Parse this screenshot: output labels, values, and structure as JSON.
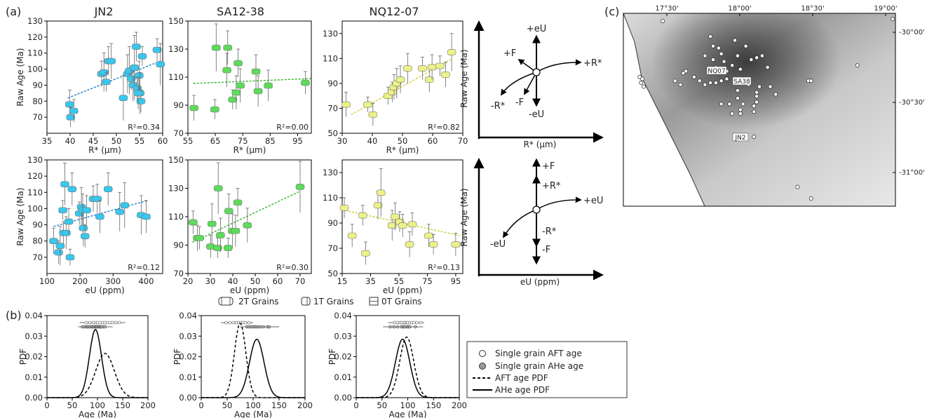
{
  "panel_labels": {
    "a": "(a)",
    "b": "(b)",
    "c": "(c)"
  },
  "samples": [
    "JN2",
    "SA12-38",
    "NQ12-07"
  ],
  "colors": {
    "JN2": "#38c7ee",
    "SA12-38": "#5ddb5a",
    "NQ12-07": "#ecf287"
  },
  "trend_colors": {
    "JN2": "#1a7fd0",
    "SA12-38": "#2fb82c",
    "NQ12-07": "#c9d32a"
  },
  "chart_data": [
    {
      "type": "scatter",
      "sample": "JN2",
      "xlabel": "R* (µm)",
      "ylabel": "Raw Age (Ma)",
      "xlim": [
        35,
        60
      ],
      "ylim": [
        60,
        130
      ],
      "xticks": [
        35,
        40,
        45,
        50,
        55,
        60
      ],
      "yticks": [
        70,
        80,
        90,
        100,
        110,
        120,
        130
      ],
      "r2": "R²=0.34",
      "trend": [
        [
          39.5,
          82
        ],
        [
          59.5,
          105
        ]
      ],
      "points": [
        [
          39.9,
          78,
          9
        ],
        [
          40.1,
          70,
          6
        ],
        [
          40.8,
          74,
          7
        ],
        [
          46.8,
          97,
          8
        ],
        [
          47.3,
          98,
          12
        ],
        [
          47.8,
          92,
          6
        ],
        [
          48.3,
          105,
          9
        ],
        [
          48.9,
          105,
          11
        ],
        [
          52.4,
          97,
          12
        ],
        [
          51.5,
          82,
          14
        ],
        [
          52.8,
          99,
          15
        ],
        [
          53.2,
          94,
          7
        ],
        [
          53.6,
          90,
          10
        ],
        [
          53.9,
          101,
          20
        ],
        [
          54.3,
          114,
          9
        ],
        [
          54.5,
          88,
          8
        ],
        [
          54.9,
          96,
          9
        ],
        [
          55.1,
          85,
          13
        ],
        [
          55.3,
          80,
          7
        ],
        [
          55.6,
          108,
          6
        ],
        [
          58.8,
          112,
          7
        ],
        [
          59.5,
          103,
          13
        ],
        [
          54.7,
          85,
          10
        ]
      ]
    },
    {
      "type": "scatter",
      "sample": "SA12-38",
      "xlabel": "R* (µm)",
      "ylabel": "",
      "xlim": [
        55,
        100
      ],
      "ylim": [
        70,
        150
      ],
      "xticks": [
        55,
        65,
        75,
        85,
        95
      ],
      "yticks": [
        70,
        90,
        110,
        130,
        150
      ],
      "r2": "R²=0.00",
      "trend": [
        [
          57,
          105.5
        ],
        [
          100,
          109
        ]
      ],
      "points": [
        [
          57.2,
          88,
          9
        ],
        [
          64.8,
          87,
          7
        ],
        [
          65.3,
          131,
          17
        ],
        [
          69.5,
          131,
          12
        ],
        [
          69.2,
          115,
          12
        ],
        [
          71.3,
          94,
          7
        ],
        [
          72.6,
          99,
          12
        ],
        [
          73.3,
          120,
          10
        ],
        [
          74.1,
          104,
          12
        ],
        [
          79.8,
          114,
          12
        ],
        [
          80.6,
          100,
          11
        ],
        [
          84.3,
          104,
          11
        ],
        [
          97.8,
          106,
          8
        ]
      ]
    },
    {
      "type": "scatter",
      "sample": "NQ12-07",
      "xlabel": "R* (µm)",
      "ylabel": "",
      "xlim": [
        30,
        70
      ],
      "ylim": [
        50,
        140
      ],
      "xticks": [
        30,
        40,
        50,
        60,
        70
      ],
      "yticks": [
        50,
        70,
        90,
        110,
        130
      ],
      "r2": "R²=0.82",
      "trend": [
        [
          33,
          65
        ],
        [
          66,
          109
        ]
      ],
      "points": [
        [
          31.3,
          73,
          10
        ],
        [
          38.5,
          73,
          6
        ],
        [
          40.2,
          65,
          9
        ],
        [
          45.2,
          80,
          7
        ],
        [
          46.6,
          83,
          8
        ],
        [
          47.2,
          87,
          10
        ],
        [
          48.1,
          90,
          12
        ],
        [
          49.3,
          93,
          11
        ],
        [
          51.7,
          102,
          12
        ],
        [
          56.6,
          102,
          9
        ],
        [
          58.9,
          93,
          10
        ],
        [
          59.8,
          103,
          10
        ],
        [
          62.4,
          104,
          8
        ],
        [
          64.3,
          97,
          10
        ],
        [
          66.3,
          115,
          15
        ]
      ]
    },
    {
      "type": "scatter",
      "sample": "JN2",
      "xlabel": "eU (ppm)",
      "ylabel": "Raw Age (Ma)",
      "xlim": [
        100,
        450
      ],
      "ylim": [
        60,
        130
      ],
      "xticks": [
        100,
        200,
        300,
        400
      ],
      "yticks": [
        70,
        80,
        90,
        100,
        110,
        120,
        130
      ],
      "r2": "R²=0.12",
      "trend": [
        [
          120,
          89
        ],
        [
          405,
          105
        ]
      ],
      "points": [
        [
          120,
          80,
          8
        ],
        [
          135,
          73,
          7
        ],
        [
          140,
          77,
          12
        ],
        [
          148,
          99,
          6
        ],
        [
          150,
          85,
          7
        ],
        [
          154,
          115,
          13
        ],
        [
          158,
          85,
          10
        ],
        [
          166,
          92,
          8
        ],
        [
          170,
          70,
          5
        ],
        [
          176,
          112,
          10
        ],
        [
          198,
          97,
          7
        ],
        [
          204,
          101,
          12
        ],
        [
          208,
          99,
          10
        ],
        [
          210,
          88,
          11
        ],
        [
          215,
          83,
          7
        ],
        [
          220,
          99,
          9
        ],
        [
          240,
          106,
          8
        ],
        [
          252,
          106,
          9
        ],
        [
          260,
          95,
          10
        ],
        [
          285,
          112,
          10
        ],
        [
          320,
          98,
          12
        ],
        [
          335,
          102,
          14
        ],
        [
          385,
          96,
          12
        ],
        [
          400,
          95,
          10
        ]
      ]
    },
    {
      "type": "scatter",
      "sample": "SA12-38",
      "xlabel": "eU (ppm)",
      "ylabel": "",
      "xlim": [
        20,
        75
      ],
      "ylim": [
        70,
        150
      ],
      "xticks": [
        20,
        30,
        40,
        50,
        60,
        70
      ],
      "yticks": [
        70,
        90,
        110,
        130,
        150
      ],
      "r2": "R²=0.30",
      "trend": [
        [
          22,
          92
        ],
        [
          70,
          128
        ]
      ],
      "points": [
        [
          22.3,
          106,
          8
        ],
        [
          24.2,
          95,
          9
        ],
        [
          25.2,
          95,
          8
        ],
        [
          30.1,
          89,
          8
        ],
        [
          30.7,
          105,
          14
        ],
        [
          33.5,
          130,
          18
        ],
        [
          33.3,
          88,
          7
        ],
        [
          34.5,
          97,
          12
        ],
        [
          37.9,
          88,
          7
        ],
        [
          38.2,
          114,
          12
        ],
        [
          39.8,
          100,
          12
        ],
        [
          41.2,
          100,
          11
        ],
        [
          42.2,
          120,
          10
        ],
        [
          46.5,
          104,
          12
        ],
        [
          70,
          131,
          18
        ]
      ]
    },
    {
      "type": "scatter",
      "sample": "NQ12-07",
      "xlabel": "eU (ppm)",
      "ylabel": "",
      "xlim": [
        15,
        100
      ],
      "ylim": [
        50,
        140
      ],
      "xticks": [
        15,
        35,
        55,
        75,
        95
      ],
      "yticks": [
        50,
        70,
        90,
        110,
        130
      ],
      "r2": "R²=0.13",
      "trend": [
        [
          17,
          100
        ],
        [
          98,
          80
        ]
      ],
      "points": [
        [
          16.5,
          102,
          8
        ],
        [
          22,
          80,
          9
        ],
        [
          29.5,
          96,
          8
        ],
        [
          31.5,
          66,
          9
        ],
        [
          40.2,
          104,
          11
        ],
        [
          42.3,
          114,
          19
        ],
        [
          50.2,
          88,
          12
        ],
        [
          52.3,
          95,
          11
        ],
        [
          55.5,
          91,
          8
        ],
        [
          57.6,
          88,
          9
        ],
        [
          62.5,
          73,
          10
        ],
        [
          64.4,
          89,
          9
        ],
        [
          76,
          80,
          9
        ],
        [
          79.3,
          73,
          8
        ],
        [
          95,
          73,
          9
        ]
      ]
    },
    {
      "type": "line",
      "sample": "JN2",
      "xlabel": "Age (Ma)",
      "ylabel": "PDF",
      "xlim": [
        0,
        200
      ],
      "ylim": [
        0,
        0.04
      ],
      "xticks": [
        0,
        50,
        100,
        150,
        200
      ],
      "yticks": [
        0.0,
        0.01,
        0.02,
        0.03,
        0.04
      ],
      "series": [
        {
          "name": "AFT age PDF",
          "dash": true,
          "mu": 115,
          "sigma": 18.5
        },
        {
          "name": "AHe age PDF",
          "dash": false,
          "mu": 96,
          "sigma": 12
        }
      ],
      "aft_grains": [
        78,
        85,
        92,
        97,
        100,
        105,
        110,
        115,
        120,
        125,
        130,
        136,
        143
      ],
      "ahe_grains": [
        70,
        74,
        78,
        80,
        82,
        85,
        88,
        90,
        92,
        94,
        96,
        98,
        99,
        101,
        103,
        105,
        106,
        108,
        112,
        115
      ],
      "aft_range": [
        65,
        155
      ],
      "ahe_range": [
        62,
        130
      ]
    },
    {
      "type": "line",
      "sample": "SA12-38",
      "xlabel": "Age (Ma)",
      "ylabel": "PDF",
      "xlim": [
        0,
        200
      ],
      "ylim": [
        0,
        0.04
      ],
      "xticks": [
        0,
        50,
        100,
        150,
        200
      ],
      "yticks": [
        0.0,
        0.01,
        0.02,
        0.03,
        0.04
      ],
      "series": [
        {
          "name": "AFT age PDF",
          "dash": true,
          "mu": 75,
          "sigma": 11
        },
        {
          "name": "AHe age PDF",
          "dash": false,
          "mu": 107,
          "sigma": 14
        }
      ],
      "aft_grains": [
        48,
        55,
        62,
        68,
        72,
        76,
        80,
        85,
        92
      ],
      "ahe_grains": [
        88,
        92,
        96,
        100,
        104,
        106,
        110,
        114,
        120,
        128,
        131
      ],
      "aft_range": [
        38,
        100
      ],
      "ahe_range": [
        75,
        150
      ]
    },
    {
      "type": "line",
      "sample": "NQ12-07",
      "xlabel": "Age (Ma)",
      "ylabel": "PDF",
      "xlim": [
        0,
        200
      ],
      "ylim": [
        0,
        0.04
      ],
      "xticks": [
        0,
        50,
        100,
        150,
        200
      ],
      "yticks": [
        0.0,
        0.01,
        0.02,
        0.03,
        0.04
      ],
      "series": [
        {
          "name": "AFT age PDF",
          "dash": true,
          "mu": 98,
          "sigma": 13.5
        },
        {
          "name": "AHe age PDF",
          "dash": false,
          "mu": 90,
          "sigma": 14
        }
      ],
      "aft_grains": [
        75,
        80,
        85,
        88,
        92,
        95,
        98,
        100,
        104,
        108,
        112,
        118,
        125
      ],
      "ahe_grains": [
        66,
        73,
        80,
        88,
        91,
        93,
        96,
        100,
        102,
        104,
        115
      ],
      "aft_range": [
        62,
        132
      ],
      "ahe_range": [
        52,
        130
      ]
    }
  ],
  "schematic_top": {
    "xlabel": "R* (µm)",
    "ylabel": "Raw Age (Ma)",
    "labels": [
      "+eU",
      "-eU",
      "+F",
      "-F",
      "+R*",
      "-R*"
    ]
  },
  "schematic_bottom": {
    "xlabel": "eU (ppm)",
    "ylabel": "Raw Age (Ma)",
    "labels": [
      "+F",
      "+R*",
      "+eU",
      "-eU",
      "-R*",
      "-F"
    ]
  },
  "grain_legend": [
    "2T Grains",
    "1T Grains",
    "0T Grains"
  ],
  "pdf_legend": [
    "Single grain AFT age",
    "Single grain AHe age",
    "AFT age PDF",
    "AHe age PDF"
  ],
  "map": {
    "top_ticks": [
      "17°30'",
      "18°00'",
      "18°30'",
      "19°00'"
    ],
    "right_ticks": [
      "-30°00'",
      "-30°30'",
      "-31°00'"
    ],
    "site_labels": [
      "NQ07",
      "SA38",
      "JN2"
    ],
    "sample_points": [
      [
        0.145,
        0.04
      ],
      [
        0.32,
        0.12
      ],
      [
        0.33,
        0.17
      ],
      [
        0.35,
        0.18
      ],
      [
        0.36,
        0.21
      ],
      [
        0.3,
        0.22
      ],
      [
        0.33,
        0.24
      ],
      [
        0.41,
        0.14
      ],
      [
        0.45,
        0.17
      ],
      [
        0.42,
        0.22
      ],
      [
        0.4,
        0.27
      ],
      [
        0.37,
        0.25
      ],
      [
        0.34,
        0.28
      ],
      [
        0.38,
        0.3
      ],
      [
        0.43,
        0.29
      ],
      [
        0.47,
        0.24
      ],
      [
        0.49,
        0.23
      ],
      [
        0.51,
        0.22
      ],
      [
        0.53,
        0.28
      ],
      [
        0.44,
        0.34
      ],
      [
        0.41,
        0.35
      ],
      [
        0.38,
        0.34
      ],
      [
        0.36,
        0.35
      ],
      [
        0.34,
        0.36
      ],
      [
        0.32,
        0.36
      ],
      [
        0.3,
        0.37
      ],
      [
        0.28,
        0.35
      ],
      [
        0.26,
        0.33
      ],
      [
        0.23,
        0.3
      ],
      [
        0.22,
        0.31
      ],
      [
        0.19,
        0.35
      ],
      [
        0.21,
        0.37
      ],
      [
        0.06,
        0.33
      ],
      [
        0.065,
        0.36
      ],
      [
        0.07,
        0.34
      ],
      [
        0.075,
        0.38
      ],
      [
        0.46,
        0.37
      ],
      [
        0.5,
        0.38
      ],
      [
        0.49,
        0.41
      ],
      [
        0.49,
        0.43
      ],
      [
        0.49,
        0.46
      ],
      [
        0.48,
        0.48
      ],
      [
        0.48,
        0.51
      ],
      [
        0.43,
        0.5
      ],
      [
        0.43,
        0.52
      ],
      [
        0.44,
        0.47
      ],
      [
        0.4,
        0.52
      ],
      [
        0.36,
        0.47
      ],
      [
        0.39,
        0.47
      ],
      [
        0.42,
        0.44
      ],
      [
        0.56,
        0.42
      ],
      [
        0.68,
        0.35
      ],
      [
        0.69,
        0.35
      ],
      [
        0.86,
        0.27
      ],
      [
        0.99,
        0.03
      ],
      [
        0.48,
        0.64
      ],
      [
        0.64,
        0.9
      ],
      [
        0.69,
        0.96
      ],
      [
        0.54,
        0.38
      ],
      [
        0.42,
        0.4
      ]
    ]
  }
}
